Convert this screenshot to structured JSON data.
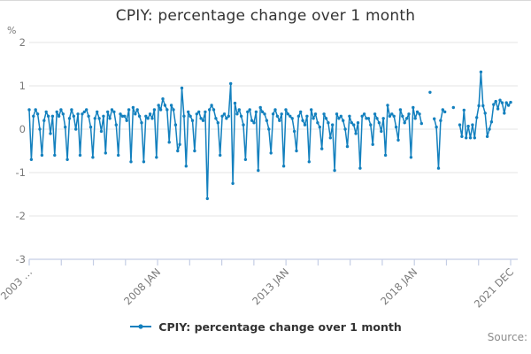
{
  "page": {
    "source_label": "Source:"
  },
  "colors": {
    "series": "#1380be",
    "grid": "#e6e6e6",
    "axis": "#c5cee5",
    "tick_text": "#7a7a7a",
    "title_text": "#333333",
    "legend_text": "#333333",
    "source_text": "#8c8c8c"
  },
  "chart_data": {
    "type": "line",
    "title": "CPIY: percentage change over 1 month",
    "y_unit": "%",
    "ylim": [
      -3,
      2
    ],
    "yticks": [
      2,
      1,
      0,
      -1,
      -2,
      -3
    ],
    "grid": true,
    "legend_position": "bottom",
    "x_description": "Monthly observations, Jan 2003 to Dec 2021; null = gap in published series",
    "x_tick_count": 16,
    "x_tick_labels": [
      {
        "tick": 0,
        "label": "2003 …"
      },
      {
        "tick": 4,
        "label": "2008 JAN"
      },
      {
        "tick": 8,
        "label": "2013 JAN"
      },
      {
        "tick": 12,
        "label": "2018 JAN"
      },
      {
        "tick": 15,
        "label": "2021 DEC"
      }
    ],
    "series": [
      {
        "name": "CPIY: percentage change over 1 month",
        "color": "#1380be",
        "start": "2003 JAN",
        "end": "2021 DEC",
        "values": [
          0.45,
          -0.7,
          0.3,
          0.45,
          0.35,
          0.0,
          -0.6,
          0.2,
          0.4,
          0.3,
          -0.1,
          0.3,
          -0.6,
          0.4,
          0.3,
          0.45,
          0.35,
          0.05,
          -0.7,
          0.25,
          0.45,
          0.3,
          0.0,
          0.35,
          -0.6,
          0.35,
          0.4,
          0.45,
          0.3,
          0.05,
          -0.65,
          0.25,
          0.4,
          0.25,
          -0.05,
          0.3,
          -0.55,
          0.4,
          0.25,
          0.45,
          0.4,
          0.1,
          -0.6,
          0.35,
          0.3,
          0.3,
          0.2,
          0.45,
          -0.75,
          0.5,
          0.35,
          0.45,
          0.3,
          0.15,
          -0.75,
          0.3,
          0.25,
          0.35,
          0.25,
          0.45,
          -0.65,
          0.55,
          0.45,
          0.7,
          0.55,
          0.45,
          -0.3,
          0.55,
          0.45,
          0.1,
          -0.5,
          -0.35,
          0.95,
          0.3,
          -0.85,
          0.4,
          0.3,
          0.2,
          -0.5,
          0.35,
          0.4,
          0.25,
          0.2,
          0.4,
          -1.6,
          0.45,
          0.55,
          0.45,
          0.25,
          0.15,
          -0.6,
          0.3,
          0.35,
          0.25,
          0.3,
          1.05,
          -1.25,
          0.6,
          0.35,
          0.45,
          0.3,
          0.1,
          -0.7,
          0.4,
          0.45,
          0.2,
          0.15,
          0.4,
          -0.95,
          0.5,
          0.4,
          0.35,
          0.2,
          0.0,
          -0.55,
          0.35,
          0.45,
          0.3,
          0.2,
          0.35,
          -0.85,
          0.45,
          0.35,
          0.3,
          0.25,
          -0.05,
          -0.5,
          0.3,
          0.4,
          0.2,
          0.1,
          0.3,
          -0.75,
          0.45,
          0.25,
          0.35,
          0.15,
          0.05,
          -0.45,
          0.35,
          0.25,
          0.15,
          -0.2,
          0.1,
          -0.95,
          0.35,
          0.25,
          0.3,
          0.2,
          0.0,
          -0.4,
          0.3,
          0.15,
          0.1,
          -0.1,
          0.15,
          -0.9,
          0.3,
          0.35,
          0.25,
          0.25,
          0.1,
          -0.35,
          0.35,
          0.25,
          0.15,
          -0.05,
          0.25,
          -0.6,
          0.55,
          0.3,
          0.35,
          0.3,
          0.05,
          -0.25,
          0.45,
          0.3,
          0.15,
          0.25,
          0.35,
          -0.65,
          0.5,
          0.25,
          0.4,
          0.35,
          0.13,
          null,
          null,
          null,
          0.85,
          null,
          0.24,
          0.05,
          -0.9,
          0.2,
          0.45,
          0.4,
          null,
          null,
          null,
          0.5,
          null,
          null,
          0.1,
          -0.17,
          0.44,
          -0.2,
          0.07,
          -0.2,
          0.1,
          -0.2,
          0.27,
          0.54,
          1.32,
          0.54,
          0.37,
          -0.17,
          0.0,
          0.17,
          0.57,
          0.64,
          0.47,
          0.67,
          0.61,
          0.37,
          0.61,
          0.55,
          0.62
        ]
      }
    ]
  }
}
